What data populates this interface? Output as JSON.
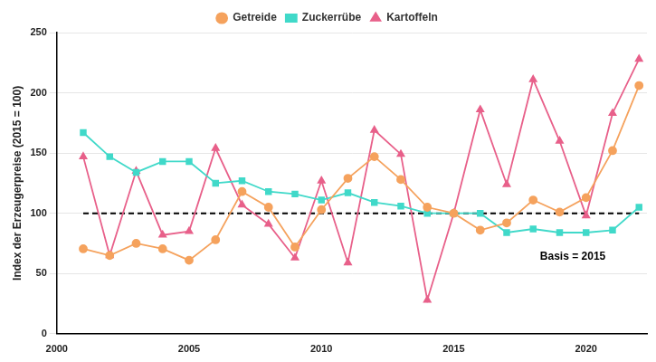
{
  "chart_data": {
    "type": "line",
    "y_label": "Index der Erzeugerpreise (2015 = 100)",
    "x": [
      2001,
      2002,
      2003,
      2004,
      2005,
      2006,
      2007,
      2008,
      2009,
      2010,
      2011,
      2012,
      2013,
      2014,
      2015,
      2016,
      2017,
      2018,
      2019,
      2020,
      2021,
      2022
    ],
    "series": [
      {
        "name": "Getreide",
        "color": "#f5a25d",
        "marker": "circle",
        "values": [
          70.5,
          65,
          75,
          70.5,
          61,
          78,
          118,
          105,
          72,
          103,
          129,
          147,
          128,
          105,
          100,
          86,
          92,
          111,
          101,
          113,
          152,
          206
        ]
      },
      {
        "name": "Zuckerrübe",
        "color": "#40d9c9",
        "marker": "square",
        "values": [
          167,
          147,
          134,
          143,
          143,
          125,
          127,
          118,
          116,
          111,
          117,
          109,
          106,
          100,
          100,
          100,
          84,
          87,
          84,
          84,
          86,
          105
        ]
      },
      {
        "name": "Kartoffeln",
        "color": "#e8608a",
        "marker": "triangle",
        "values": [
          147,
          65,
          135,
          82,
          85,
          154,
          107,
          91,
          63,
          127,
          59,
          169,
          149,
          28,
          100,
          186,
          124,
          211,
          160,
          98,
          183,
          228
        ]
      }
    ],
    "reference_line": {
      "value": 100,
      "line_style": "dashed",
      "label": "Basis = 2015"
    },
    "xlim": [
      2000,
      2022.3
    ],
    "xticks": [
      2000,
      2005,
      2010,
      2015,
      2020
    ],
    "ylim": [
      0,
      250
    ],
    "yticks": [
      0,
      50,
      100,
      150,
      200,
      250
    ],
    "grid": "y",
    "legend": "top"
  }
}
